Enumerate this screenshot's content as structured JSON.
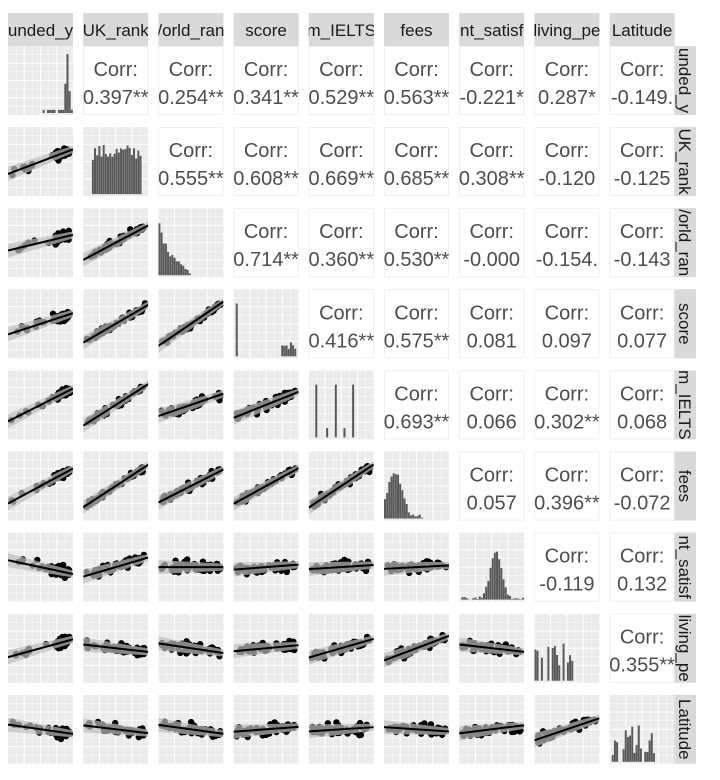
{
  "chart_data": {
    "type": "scatter-matrix",
    "variables": [
      "unded_y",
      "UK_rank",
      "/orld_ran",
      "score",
      "m_IELTS",
      "fees",
      "nt_satisf",
      "living_pe",
      "Latitude"
    ],
    "row_labels": [
      "unded_y",
      "UK_rank",
      "/orld_ran",
      "score",
      "m_IELTS",
      "fees",
      "nt_satisf",
      "living_pe",
      "Latitude"
    ],
    "corr_prefix": "Corr:",
    "correlations": [
      {
        "row": 0,
        "col": 1,
        "text": "0.397**"
      },
      {
        "row": 0,
        "col": 2,
        "text": "0.254**"
      },
      {
        "row": 0,
        "col": 3,
        "text": "0.341**"
      },
      {
        "row": 0,
        "col": 4,
        "text": "0.529**"
      },
      {
        "row": 0,
        "col": 5,
        "text": "0.563**"
      },
      {
        "row": 0,
        "col": 6,
        "text": "-0.221*"
      },
      {
        "row": 0,
        "col": 7,
        "text": "0.287*"
      },
      {
        "row": 0,
        "col": 8,
        "text": "-0.149."
      },
      {
        "row": 1,
        "col": 2,
        "text": "0.555**"
      },
      {
        "row": 1,
        "col": 3,
        "text": "0.608**"
      },
      {
        "row": 1,
        "col": 4,
        "text": "0.669**"
      },
      {
        "row": 1,
        "col": 5,
        "text": "0.685**"
      },
      {
        "row": 1,
        "col": 6,
        "text": "0.308**"
      },
      {
        "row": 1,
        "col": 7,
        "text": "-0.120"
      },
      {
        "row": 1,
        "col": 8,
        "text": "-0.125"
      },
      {
        "row": 2,
        "col": 3,
        "text": "0.714**"
      },
      {
        "row": 2,
        "col": 4,
        "text": "0.360**"
      },
      {
        "row": 2,
        "col": 5,
        "text": "0.530**"
      },
      {
        "row": 2,
        "col": 6,
        "text": "-0.000"
      },
      {
        "row": 2,
        "col": 7,
        "text": "-0.154."
      },
      {
        "row": 2,
        "col": 8,
        "text": "-0.143"
      },
      {
        "row": 3,
        "col": 4,
        "text": "0.416**"
      },
      {
        "row": 3,
        "col": 5,
        "text": "0.575**"
      },
      {
        "row": 3,
        "col": 6,
        "text": "0.081"
      },
      {
        "row": 3,
        "col": 7,
        "text": "0.097"
      },
      {
        "row": 3,
        "col": 8,
        "text": "0.077"
      },
      {
        "row": 4,
        "col": 5,
        "text": "0.693**"
      },
      {
        "row": 4,
        "col": 6,
        "text": "0.066"
      },
      {
        "row": 4,
        "col": 7,
        "text": "0.302**"
      },
      {
        "row": 4,
        "col": 8,
        "text": "0.068"
      },
      {
        "row": 5,
        "col": 6,
        "text": "0.057"
      },
      {
        "row": 5,
        "col": 7,
        "text": "0.396**"
      },
      {
        "row": 5,
        "col": 8,
        "text": "-0.072"
      },
      {
        "row": 6,
        "col": 7,
        "text": "-0.119"
      },
      {
        "row": 6,
        "col": 8,
        "text": "0.132"
      },
      {
        "row": 7,
        "col": 8,
        "text": "0.355**"
      }
    ],
    "grid": true,
    "colors": {
      "strip_bg": "#d9d9d9",
      "panel_bg": "#ebebeb",
      "gridline": "#ffffff",
      "points": "#000000",
      "bars": "#595959",
      "ci_band": "#bdbdbd",
      "corr_text": "#4d4d4d"
    }
  }
}
